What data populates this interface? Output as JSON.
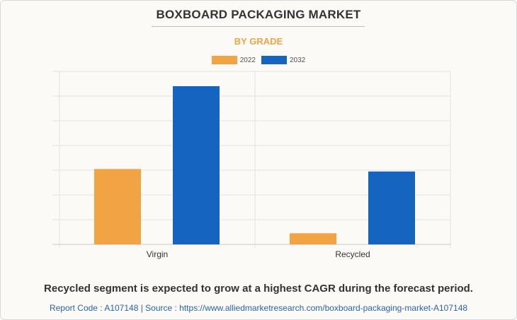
{
  "colors": {
    "series_2022": "#f2a444",
    "series_2032": "#1565c0",
    "grid": "#e3e3e3",
    "axis": "#c8c8c8"
  },
  "chart_data": {
    "type": "bar",
    "title": "BOXBOARD PACKAGING MARKET",
    "subtitle": "BY GRADE",
    "categories": [
      "Virgin",
      "Recycled"
    ],
    "series": [
      {
        "name": "2022",
        "values": [
          30.5,
          4.5
        ]
      },
      {
        "name": "2032",
        "values": [
          64.0,
          29.5
        ]
      }
    ],
    "ylim": [
      0,
      70
    ],
    "grid": true,
    "legend": "top-center",
    "xlabel": "",
    "ylabel": ""
  },
  "footer": {
    "note": "Recycled segment is expected to grow at a highest CAGR during the forecast period.",
    "source": "Report Code : A107148  |  Source : https://www.alliedmarketresearch.com/boxboard-packaging-market-A107148"
  }
}
